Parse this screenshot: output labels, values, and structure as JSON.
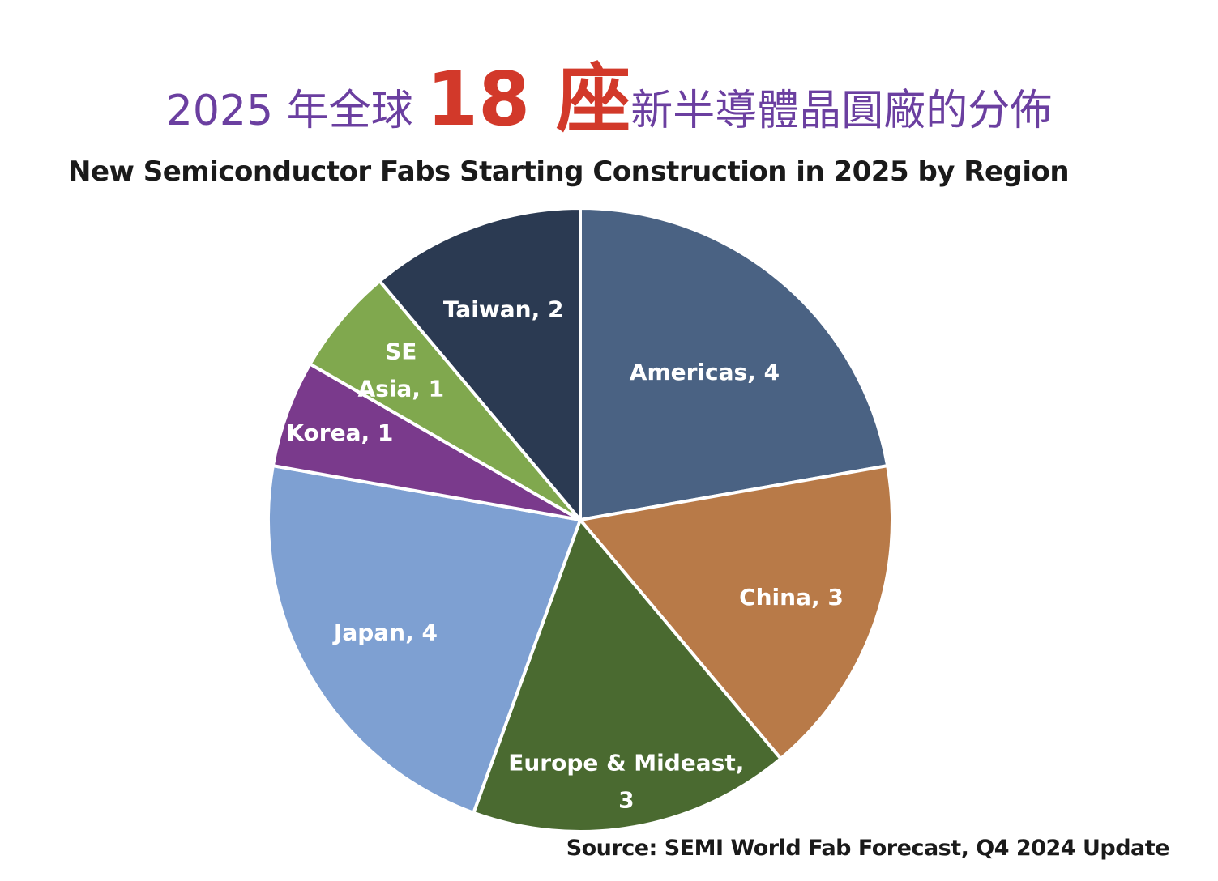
{
  "headline": {
    "prefix": "2025 年全球 ",
    "highlight": "18 座",
    "suffix": "新半導體晶圓廠的分佈"
  },
  "chart_data": {
    "type": "pie",
    "title": "New Semiconductor Fabs Starting Construction in 2025 by Region",
    "source": "Source: SEMI World Fab Forecast, Q4 2024 Update",
    "start": "12 o'clock, clockwise",
    "slices": [
      {
        "label": "Americas",
        "value": 4,
        "text": "Americas, 4",
        "color": "#4a6283"
      },
      {
        "label": "China",
        "value": 3,
        "text": "China, 3",
        "color": "#b87a48"
      },
      {
        "label": "Europe & Mideast",
        "value": 3,
        "text": "Europe & Mideast, 3",
        "color": "#4a6a30"
      },
      {
        "label": "Japan",
        "value": 4,
        "text": "Japan, 4",
        "color": "#7ea0d2"
      },
      {
        "label": "Korea",
        "value": 1,
        "text": "Korea, 1",
        "color": "#7a3a8c"
      },
      {
        "label": "SE Asia",
        "value": 1,
        "text": "SE Asia, 1",
        "color": "#80a84e"
      },
      {
        "label": "Taiwan",
        "value": 2,
        "text": "Taiwan, 2",
        "color": "#2b3a52"
      }
    ]
  }
}
